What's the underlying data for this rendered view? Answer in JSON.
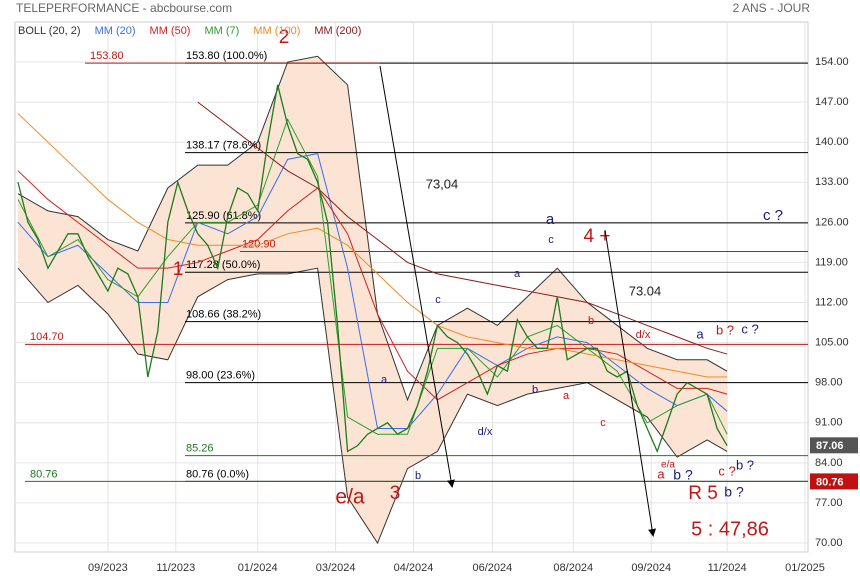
{
  "chart_data": {
    "type": "line",
    "title": "TELEPERFORMANCE - abcbourse.com",
    "subtitle": "2 ANS - JOUR",
    "xlim": [
      -0.3,
      79.1
    ],
    "ylim": [
      68.43,
      160.99
    ],
    "grid": true,
    "xticks": [
      {
        "value": 9.0,
        "label": "09/2023"
      },
      {
        "value": 15.8,
        "label": "11/2023"
      },
      {
        "value": 24.0,
        "label": "01/2024"
      },
      {
        "value": 31.8,
        "label": "03/2024"
      },
      {
        "value": 39.6,
        "label": "04/2024"
      },
      {
        "value": 47.5,
        "label": "06/2024"
      },
      {
        "value": 55.6,
        "label": "08/2024"
      },
      {
        "value": 63.4,
        "label": "09/2024"
      },
      {
        "value": 71.0,
        "label": "11/2024"
      },
      {
        "value": 78.8,
        "label": "01/2025"
      }
    ],
    "yticks": [
      {
        "value": 154,
        "label": "154.00"
      },
      {
        "value": 147,
        "label": "147.00"
      },
      {
        "value": 140,
        "label": "140.00"
      },
      {
        "value": 133,
        "label": "133.00"
      },
      {
        "value": 126,
        "label": "126.00"
      },
      {
        "value": 119,
        "label": "119.00"
      },
      {
        "value": 112,
        "label": "112.00"
      },
      {
        "value": 105,
        "label": "105.00"
      },
      {
        "value": 98,
        "label": "98.00"
      },
      {
        "value": 91,
        "label": "91.00"
      },
      {
        "value": 84,
        "label": "84.00"
      },
      {
        "value": 77,
        "label": "77.00"
      },
      {
        "value": 70,
        "label": "70.00"
      }
    ],
    "price": {
      "color": "#1f7a1f",
      "values": [
        133,
        126,
        123,
        118,
        121,
        124,
        124,
        120,
        117,
        114,
        118,
        117,
        113,
        99,
        107,
        126,
        133,
        128,
        124,
        122,
        118,
        127,
        132,
        131,
        128,
        140,
        150,
        143,
        138,
        137,
        133,
        126,
        108,
        86,
        87,
        89,
        90,
        91,
        89,
        90,
        94,
        100,
        108,
        106,
        105,
        103,
        100,
        96,
        101,
        100,
        109,
        106,
        104,
        104,
        113,
        102,
        103,
        104,
        104,
        100,
        99,
        100,
        94,
        90,
        86,
        91,
        96,
        98,
        97,
        96,
        90,
        87
      ]
    },
    "bollinger": {
      "name": "BOLL (20, 2)",
      "color": "#333333",
      "fill": "#fbe4d3",
      "x": [
        0,
        3,
        6,
        9,
        12,
        15,
        18,
        21,
        24,
        27,
        30,
        33,
        36,
        39,
        42,
        45,
        48,
        51,
        54,
        57,
        60,
        63,
        66,
        69,
        71
      ],
      "upper": [
        131,
        128,
        127,
        123,
        121,
        132,
        136,
        136,
        140,
        154,
        155,
        150,
        110,
        95,
        108,
        111,
        108,
        113,
        118,
        112,
        108,
        104,
        102,
        102,
        100
      ],
      "lower": [
        118,
        112,
        115,
        110,
        103,
        102,
        113,
        116,
        117,
        117,
        118,
        78,
        70,
        83,
        86,
        96,
        94,
        96,
        97,
        98,
        95,
        92,
        85,
        88,
        86
      ]
    },
    "series": [
      {
        "name": "MM (20)",
        "color": "#3a6ee8",
        "x": [
          0,
          3,
          6,
          9,
          12,
          15,
          18,
          21,
          24,
          27,
          30,
          33,
          36,
          39,
          42,
          45,
          48,
          51,
          54,
          57,
          60,
          63,
          66,
          69,
          71
        ],
        "values": [
          126,
          120,
          122,
          117,
          112,
          112,
          126,
          124,
          127,
          137,
          138,
          118,
          90,
          90,
          96,
          104,
          101,
          104,
          106,
          105,
          101,
          97,
          94,
          96,
          93
        ]
      },
      {
        "name": "MM (50)",
        "color": "#d42020",
        "x": [
          0,
          3,
          6,
          9,
          12,
          15,
          18,
          21,
          24,
          27,
          30,
          33,
          36,
          39,
          42,
          45,
          48,
          51,
          54,
          57,
          60,
          63,
          66,
          69,
          71
        ],
        "values": [
          135,
          130,
          126,
          122,
          118,
          118,
          119,
          121,
          123,
          128,
          132,
          124,
          110,
          100,
          95,
          98,
          101,
          103,
          104,
          104,
          103,
          100,
          97,
          97,
          96
        ]
      },
      {
        "name": "MM (7)",
        "color": "#2ca02c",
        "x": [
          0,
          3,
          6,
          9,
          12,
          15,
          18,
          21,
          24,
          27,
          30,
          33,
          36,
          39,
          42,
          45,
          48,
          51,
          54,
          57,
          60,
          63,
          66,
          69,
          71
        ],
        "values": [
          130,
          120,
          123,
          116,
          113,
          120,
          126,
          126,
          129,
          144,
          134,
          92,
          89,
          89,
          104,
          104,
          99,
          106,
          108,
          104,
          100,
          91,
          94,
          96,
          89
        ]
      },
      {
        "name": "MM (100)",
        "color": "#f08a24",
        "x": [
          0,
          3,
          6,
          9,
          12,
          15,
          18,
          21,
          24,
          27,
          30,
          33,
          36,
          39,
          42,
          45,
          48,
          51,
          54,
          57,
          60,
          63,
          66,
          69,
          71
        ],
        "values": [
          145,
          140,
          135,
          130,
          126,
          123,
          122,
          122,
          122,
          124,
          125,
          122,
          117,
          112,
          108,
          106,
          105,
          104,
          104,
          103,
          102,
          101,
          100,
          99,
          99
        ]
      },
      {
        "name": "MM (200)",
        "color": "#8b1a1a",
        "x": [
          18,
          21,
          24,
          27,
          30,
          33,
          36,
          39,
          42,
          45,
          48,
          51,
          54,
          57,
          60,
          63,
          66,
          69,
          71
        ],
        "values": [
          147,
          143,
          139,
          135,
          132,
          127,
          123,
          119,
          117,
          116,
          115,
          114,
          113,
          112,
          110,
          108,
          106,
          104,
          103
        ]
      }
    ],
    "levels": [
      {
        "value": 153.8,
        "label": "153.80 (100.0%)",
        "color": "#000000"
      },
      {
        "value": 138.17,
        "label": "138.17 (78.6%)",
        "color": "#000000"
      },
      {
        "value": 125.9,
        "label": "125.90 (61.8%)",
        "color": "#000000"
      },
      {
        "value": 117.28,
        "label": "117.28 (50.0%)",
        "color": "#000000"
      },
      {
        "value": 108.66,
        "label": "108.66 (38.2%)",
        "color": "#000000"
      },
      {
        "value": 98.0,
        "label": "98.00 (23.6%)",
        "color": "#000000"
      },
      {
        "value": 80.76,
        "label": "80.76 (0.0%)",
        "color": "#000000"
      },
      {
        "value": 153.8,
        "label": "153.80",
        "color": "#c01818"
      },
      {
        "value": 120.9,
        "label": "120.90",
        "color": "#c01818"
      },
      {
        "value": 104.7,
        "label": "104.70",
        "color": "#c01818"
      },
      {
        "value": 85.26,
        "label": "85.26",
        "color": "#1f7a1f"
      },
      {
        "value": 80.76,
        "label": "80.76",
        "color": "#1f7a1f"
      }
    ],
    "badges": [
      {
        "value": 87.06,
        "color": "#555555"
      },
      {
        "value": 80.76,
        "color": "#c01010"
      }
    ],
    "annotations": [
      "2",
      "73,04",
      "a",
      "c",
      "4 +",
      "c ?",
      "73.04",
      "1",
      "e/a",
      "3",
      "a",
      "b",
      "c",
      "d/x",
      "a",
      "b",
      "a",
      "b",
      "c",
      "d/x",
      "a",
      "b ?",
      "c ?",
      "e/a",
      "a",
      "b ?",
      "c ?",
      "b ?",
      "R 5",
      "b ?",
      "5 : 47,86"
    ]
  }
}
